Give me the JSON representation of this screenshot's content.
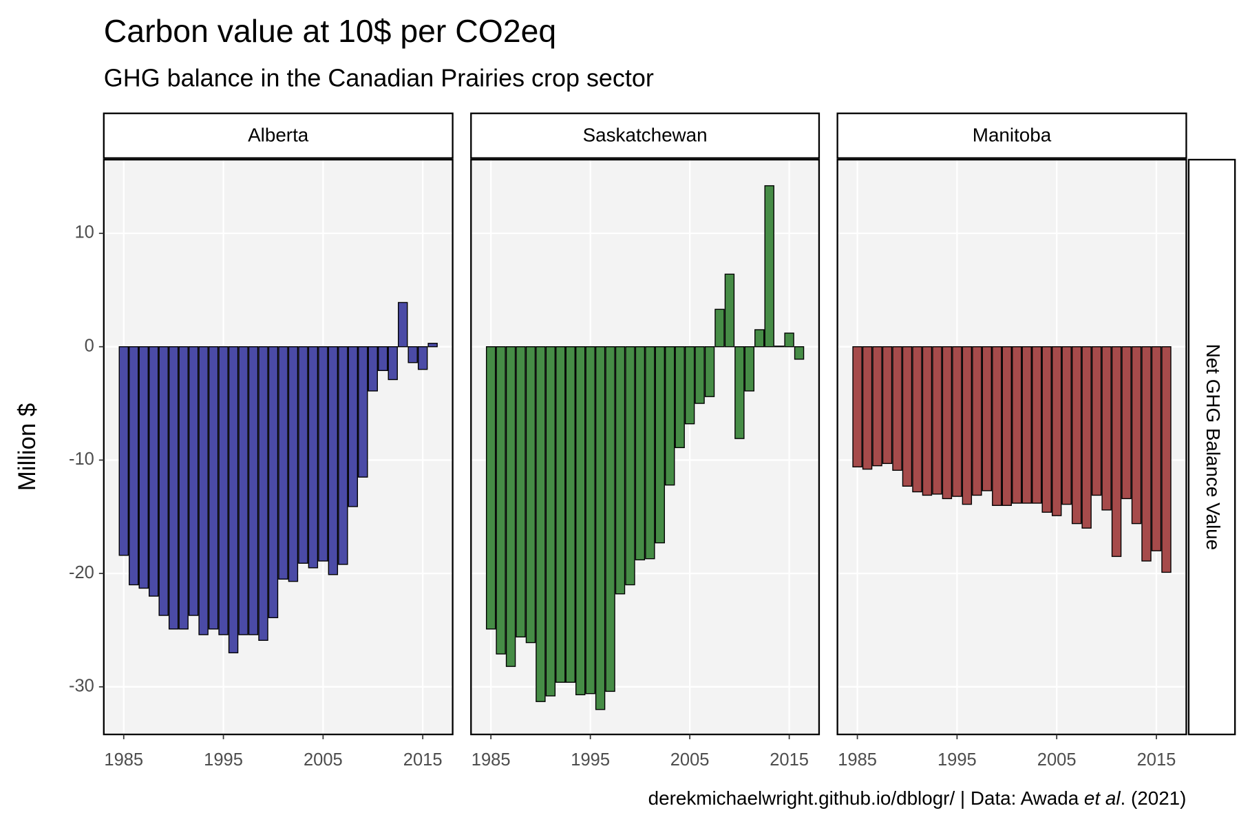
{
  "chart_data": {
    "type": "bar",
    "title": "Carbon value at 10$ per CO2eq",
    "subtitle": "GHG balance in the Canadian Prairies crop sector",
    "y_label": "Million $",
    "strip_right": "Net GHG Balance Value",
    "caption": [
      "derekmichaelwright.github.io/dblogr/ | Data: Awada ",
      "et al",
      ". (2021)"
    ],
    "x": [
      1985,
      1986,
      1987,
      1988,
      1989,
      1990,
      1991,
      1992,
      1993,
      1994,
      1995,
      1996,
      1997,
      1998,
      1999,
      2000,
      2001,
      2002,
      2003,
      2004,
      2005,
      2006,
      2007,
      2008,
      2009,
      2010,
      2011,
      2012,
      2013,
      2014,
      2015,
      2016
    ],
    "series": [
      {
        "name": "Alberta",
        "color": "#4b4ba6",
        "values": [
          -18.4,
          -21.0,
          -21.3,
          -22.0,
          -23.7,
          -24.9,
          -24.9,
          -23.7,
          -25.4,
          -24.9,
          -25.4,
          -27.0,
          -25.4,
          -25.4,
          -25.9,
          -23.9,
          -20.5,
          -20.7,
          -19.1,
          -19.5,
          -18.9,
          -20.1,
          -19.2,
          -14.1,
          -11.5,
          -3.9,
          -2.1,
          -2.9,
          3.9,
          -1.4,
          -2.0,
          0.3
        ]
      },
      {
        "name": "Saskatchewan",
        "color": "#468c46",
        "values": [
          -24.9,
          -27.1,
          -28.2,
          -25.6,
          -26.1,
          -31.3,
          -30.8,
          -29.6,
          -29.6,
          -30.7,
          -30.6,
          -32.0,
          -30.4,
          -21.8,
          -21.0,
          -18.8,
          -18.7,
          -17.3,
          -12.2,
          -8.9,
          -6.8,
          -5.0,
          -4.4,
          3.3,
          6.4,
          -8.1,
          -3.9,
          1.5,
          14.2,
          0.05,
          1.2,
          -1.1
        ]
      },
      {
        "name": "Manitoba",
        "color": "#a64b4b",
        "values": [
          -10.6,
          -10.8,
          -10.5,
          -10.3,
          -10.9,
          -12.3,
          -12.8,
          -13.1,
          -13.0,
          -13.4,
          -13.2,
          -13.9,
          -13.1,
          -12.7,
          -14.0,
          -14.0,
          -13.8,
          -13.8,
          -13.8,
          -14.6,
          -14.9,
          -13.9,
          -15.6,
          -16.0,
          -13.1,
          -14.4,
          -18.5,
          -13.4,
          -15.6,
          -18.9,
          -18.0,
          -19.9
        ]
      }
    ],
    "xlim": [
      1983,
      2018
    ],
    "xticks": [
      1985,
      1995,
      2005,
      2015
    ],
    "ylim": [
      -34.2,
      16.5
    ],
    "yticks": [
      -30,
      -20,
      -10,
      0,
      10
    ],
    "grid": true
  }
}
